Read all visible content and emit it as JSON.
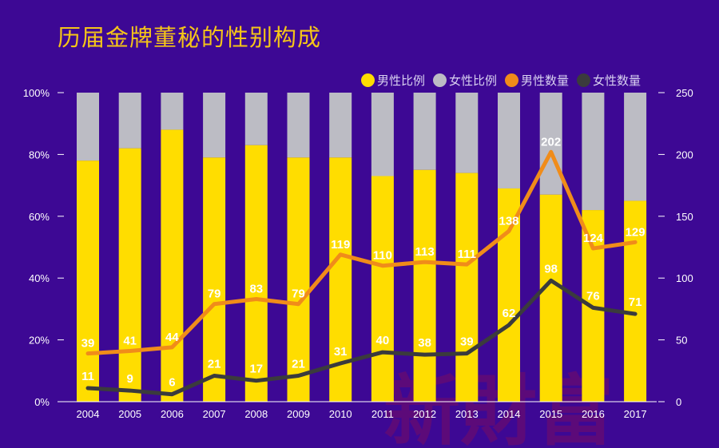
{
  "title": "历届金牌董秘的性别构成",
  "watermark": "新財富",
  "colors": {
    "background": "#3d0894",
    "title": "#f5c518",
    "male_ratio": "#ffdd00",
    "female_ratio": "#bcbcc4",
    "male_count": "#f08c1a",
    "female_count": "#3b3b3d",
    "axis": "#ffffff"
  },
  "legend": [
    {
      "name": "男性比例",
      "color": "#ffdd00"
    },
    {
      "name": "女性比例",
      "color": "#bcbcc4"
    },
    {
      "name": "男性数量",
      "color": "#f08c1a"
    },
    {
      "name": "女性数量",
      "color": "#3b3b3d"
    }
  ],
  "chart_data": {
    "type": "bar",
    "title": "历届金牌董秘的性别构成",
    "categories": [
      "2004",
      "2005",
      "2006",
      "2007",
      "2008",
      "2009",
      "2010",
      "2011",
      "2012",
      "2013",
      "2014",
      "2015",
      "2016",
      "2017"
    ],
    "left_axis": {
      "ticks": [
        "0%",
        "20%",
        "40%",
        "60%",
        "80%",
        "100%"
      ],
      "range": [
        0,
        100
      ]
    },
    "right_axis": {
      "ticks": [
        "0",
        "50",
        "100",
        "150",
        "200",
        "250"
      ],
      "range": [
        0,
        250
      ]
    },
    "series": [
      {
        "name": "男性比例",
        "kind": "stacked-bar",
        "axis": "left",
        "values": [
          78,
          82,
          88,
          79,
          83,
          79,
          79,
          73,
          75,
          74,
          69,
          67,
          62,
          65
        ]
      },
      {
        "name": "女性比例",
        "kind": "stacked-bar",
        "axis": "left",
        "values": [
          22,
          18,
          12,
          21,
          17,
          21,
          21,
          27,
          25,
          26,
          31,
          33,
          38,
          35
        ]
      },
      {
        "name": "男性数量",
        "kind": "line",
        "axis": "right",
        "values": [
          39,
          41,
          44,
          79,
          83,
          79,
          119,
          110,
          113,
          111,
          138,
          202,
          124,
          129
        ]
      },
      {
        "name": "女性数量",
        "kind": "line",
        "axis": "right",
        "values": [
          11,
          9,
          6,
          21,
          17,
          21,
          31,
          40,
          38,
          39,
          62,
          98,
          76,
          71
        ]
      }
    ]
  }
}
